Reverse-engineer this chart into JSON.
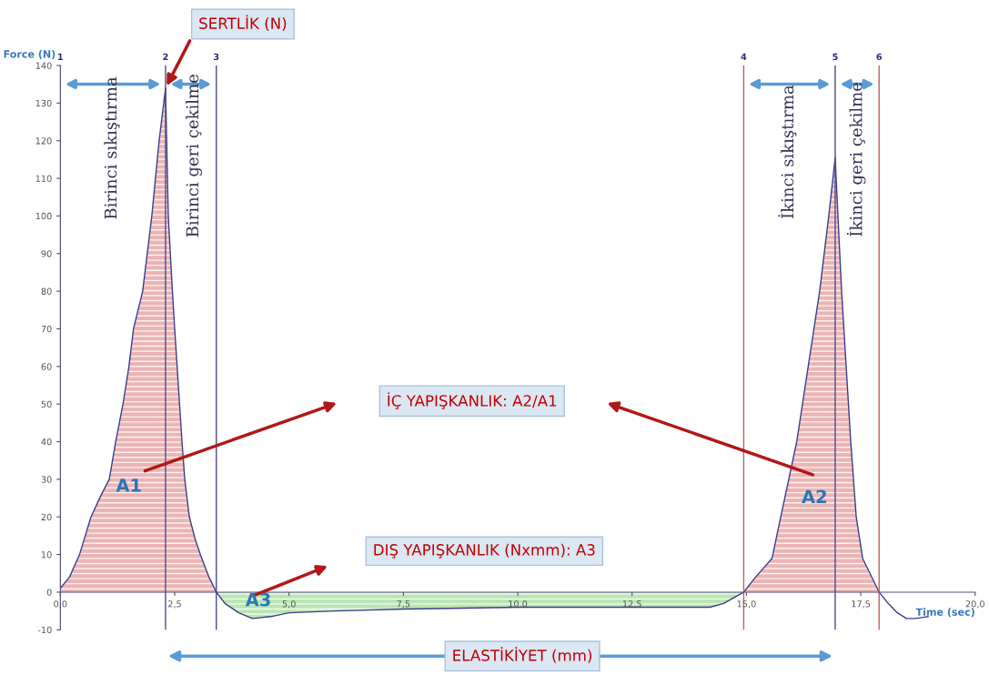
{
  "chart_data": {
    "type": "area",
    "xlabel": "Time (sec)",
    "ylabel": "Force (N)",
    "series": [
      {
        "color": "#e6a3a3",
        "x": [
          0,
          0.2,
          0.42,
          0.67,
          0.9,
          1.07,
          1.21,
          1.37,
          1.5,
          1.6,
          1.8,
          2.0,
          2.16,
          2.3,
          2.36,
          2.45,
          2.5,
          2.58,
          2.66,
          2.72,
          2.82,
          2.95,
          3.06,
          3.25,
          3.41
        ],
        "values": [
          1,
          4,
          10,
          20,
          26,
          30,
          40,
          50,
          60,
          70,
          80,
          100,
          120,
          134,
          100,
          80,
          70,
          55,
          40,
          30,
          20,
          14,
          10,
          4,
          0
        ]
      },
      {
        "color": "#a8e0a0",
        "x": [
          3.41,
          3.6,
          3.9,
          4.2,
          4.6,
          5.0,
          6.0,
          7.5,
          10,
          12.5,
          14.2,
          14.5,
          14.94
        ],
        "values": [
          0,
          -3,
          -5.5,
          -7,
          -6.5,
          -5.5,
          -5,
          -4.5,
          -4,
          -4,
          -4,
          -3,
          0
        ]
      },
      {
        "color": "#e6a3a3",
        "x": [
          14.94,
          15.2,
          15.56,
          15.75,
          16.1,
          16.35,
          16.6,
          16.8,
          16.94,
          17.0,
          17.08,
          17.18,
          17.28,
          17.4,
          17.54,
          17.9
        ],
        "values": [
          0,
          4,
          9,
          20,
          40,
          60,
          80,
          100,
          115.5,
          100,
          80,
          60,
          40,
          20,
          9,
          0
        ]
      },
      {
        "type": "line",
        "color": "#3c3c8c",
        "x": [
          17.9,
          18.1,
          18.3,
          18.5,
          18.7,
          18.97
        ],
        "values": [
          0,
          -3,
          -5.5,
          -7,
          -7,
          -6.5
        ]
      }
    ],
    "xlim": [
      0,
      20
    ],
    "ylim": [
      -10,
      140
    ],
    "xticks": [
      {
        "value": 0,
        "label": "0,0"
      },
      {
        "value": 2.5,
        "label": "2,5"
      },
      {
        "value": 5,
        "label": "5,0"
      },
      {
        "value": 7.5,
        "label": "7,5"
      },
      {
        "value": 10,
        "label": "10,0"
      },
      {
        "value": 12.5,
        "label": "12,5"
      },
      {
        "value": 15,
        "label": "15,0"
      },
      {
        "value": 17.5,
        "label": "17,5"
      },
      {
        "value": 20,
        "label": "20,0"
      }
    ],
    "yticks": [
      -10,
      0,
      10,
      20,
      30,
      40,
      50,
      60,
      70,
      80,
      90,
      100,
      110,
      120,
      130,
      140
    ],
    "grid": false,
    "legend": false,
    "ref_lines": [
      {
        "axis": "x",
        "value": 0,
        "color": "#4b4b8c"
      },
      {
        "axis": "x",
        "value": 2.3,
        "color": "#4b4b8c"
      },
      {
        "axis": "x",
        "value": 3.41,
        "color": "#4b4b8c"
      },
      {
        "axis": "x",
        "value": 14.94,
        "color": "#c06060"
      },
      {
        "axis": "x",
        "value": 16.94,
        "color": "#4b4b8c"
      },
      {
        "axis": "x",
        "value": 17.9,
        "color": "#c06060"
      }
    ],
    "annotations": [
      {
        "text": "SERTLİK (N)",
        "x": 2.3,
        "y": 134
      },
      "İÇ YAPIŞKANLIK: A2/A1",
      "DIŞ YAPIŞKANLIK (Nxmm): A3",
      "ELASTİKİYET (mm)",
      "A1",
      "A2",
      "A3",
      "Birinci sıkıştırma",
      "Birinci geri çekilme",
      "İkinci sıkıştırma",
      "İkinci geri çekilme",
      {
        "text": "1",
        "x": 0,
        "y": 140
      },
      {
        "text": "2",
        "x": 2.3,
        "y": 140
      },
      {
        "text": "3",
        "x": 3.41,
        "y": 140
      },
      {
        "text": "4",
        "x": 14.94,
        "y": 140
      },
      {
        "text": "5",
        "x": 16.94,
        "y": 140
      },
      {
        "text": "6",
        "x": 17.9,
        "y": 140
      }
    ]
  }
}
